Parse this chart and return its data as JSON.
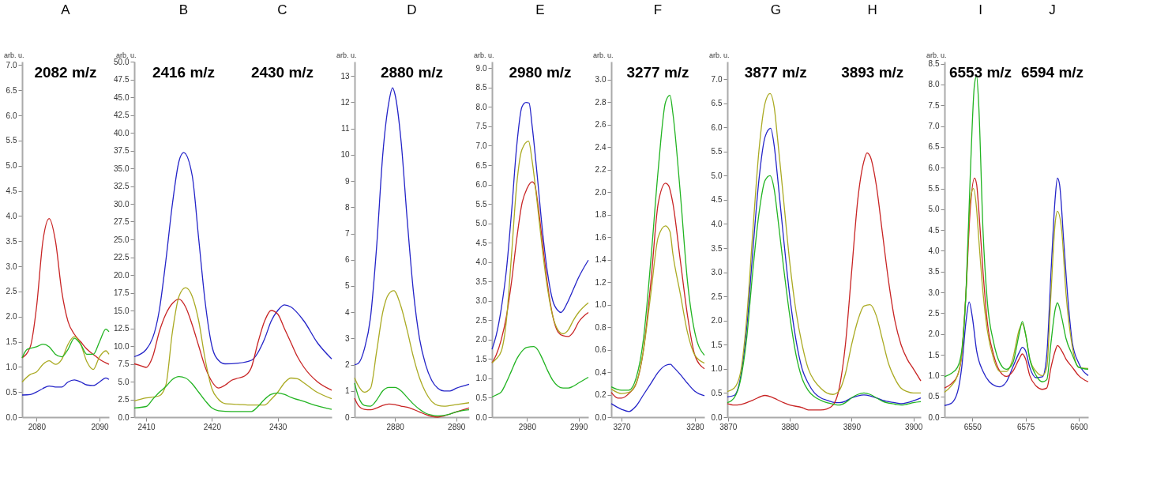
{
  "chart_data": [
    {
      "type": "line",
      "ylabel": "arb. u.",
      "xlim": [
        2077.7,
        2091.5
      ],
      "xticks": [
        2080,
        2090
      ],
      "ylim": [
        0,
        7.07
      ],
      "yticks": [
        {
          "value": 0,
          "label": "0.0"
        },
        0.5,
        {
          "value": 1,
          "label": "1.0"
        },
        1.5,
        {
          "value": 2,
          "label": "2.0"
        },
        2.5,
        {
          "value": 3,
          "label": "3.0"
        },
        3.5,
        {
          "value": 4,
          "label": "4.0"
        },
        4.5,
        {
          "value": 5,
          "label": "5.0"
        },
        5.5,
        {
          "value": 6,
          "label": "6.0"
        },
        6.5,
        {
          "value": 7,
          "label": "7.0"
        }
      ],
      "grid": false,
      "legend": false,
      "annotations": [
        "A",
        "2082 m/z"
      ],
      "series": [
        {
          "color": "#2424c8",
          "x": [
            2077.7,
            2079,
            2080,
            2081,
            2082,
            2083,
            2084,
            2085,
            2086,
            2087,
            2088,
            2089,
            2090,
            2091,
            2091.5
          ],
          "values": [
            0.44,
            0.45,
            0.5,
            0.57,
            0.62,
            0.6,
            0.6,
            0.7,
            0.74,
            0.7,
            0.64,
            0.63,
            0.7,
            0.78,
            0.75
          ]
        },
        {
          "color": "#c82424",
          "x": [
            2077.7,
            2079,
            2080,
            2081,
            2082,
            2083,
            2084,
            2085,
            2086,
            2087,
            2088,
            2089,
            2090,
            2091.5
          ],
          "values": [
            1.18,
            1.4,
            2.2,
            3.5,
            3.95,
            3.5,
            2.5,
            1.9,
            1.65,
            1.5,
            1.35,
            1.25,
            1.15,
            1.05
          ]
        },
        {
          "color": "#aaaa22",
          "x": [
            2077.7,
            2079,
            2080,
            2081,
            2082,
            2083,
            2084,
            2085,
            2086,
            2087,
            2088,
            2089,
            2090,
            2091,
            2091.5
          ],
          "values": [
            0.7,
            0.85,
            0.9,
            1.05,
            1.12,
            1.05,
            1.15,
            1.45,
            1.6,
            1.45,
            1.1,
            0.95,
            1.2,
            1.32,
            1.25
          ]
        },
        {
          "color": "#22b422",
          "x": [
            2077.7,
            2078.5,
            2080,
            2081,
            2082,
            2083,
            2084,
            2085,
            2086,
            2087,
            2088,
            2089,
            2090,
            2091,
            2091.5
          ],
          "values": [
            1.18,
            1.35,
            1.4,
            1.45,
            1.4,
            1.25,
            1.2,
            1.35,
            1.57,
            1.45,
            1.25,
            1.25,
            1.5,
            1.75,
            1.7
          ]
        }
      ]
    },
    {
      "type": "line",
      "ylabel": "arb. u.",
      "xlim": [
        2408.2,
        2438.2
      ],
      "xticks": [
        2410,
        2420,
        2430
      ],
      "ylim": [
        0,
        50
      ],
      "yticks": [
        {
          "value": 0,
          "label": "0.0"
        },
        2.5,
        {
          "value": 5,
          "label": "5.0"
        },
        7.5,
        {
          "value": 10,
          "label": "10.0"
        },
        12.5,
        {
          "value": 15,
          "label": "15.0"
        },
        17.5,
        {
          "value": 20,
          "label": "20.0"
        },
        22.5,
        {
          "value": 25,
          "label": "25.0"
        },
        27.5,
        {
          "value": 30,
          "label": "30.0"
        },
        32.5,
        {
          "value": 35,
          "label": "35.0"
        },
        37.5,
        {
          "value": 40,
          "label": "40.0"
        },
        42.5,
        {
          "value": 45,
          "label": "45.0"
        },
        47.5,
        {
          "value": 50,
          "label": "50.0"
        }
      ],
      "grid": false,
      "legend": false,
      "annotations": [
        "B",
        "C",
        "2416 m/z",
        "2430 m/z"
      ],
      "series": [
        {
          "color": "#2424c8",
          "x": [
            2408.2,
            2410,
            2412,
            2413,
            2414,
            2415,
            2415.7,
            2417,
            2418,
            2419,
            2420,
            2421,
            2422,
            2424,
            2426,
            2428,
            2429,
            2430,
            2431,
            2432,
            2434,
            2436,
            2438.2
          ],
          "values": [
            8.5,
            9.5,
            15,
            22,
            30,
            36,
            37.2,
            34,
            25,
            16,
            10,
            8,
            7.5,
            7.6,
            8,
            11,
            13.5,
            15,
            15.8,
            15.5,
            13.5,
            10.5,
            8.2
          ]
        },
        {
          "color": "#c82424",
          "x": [
            2408.2,
            2409,
            2410,
            2411,
            2412,
            2413,
            2414,
            2415,
            2416,
            2417,
            2418,
            2419,
            2420,
            2421,
            2422,
            2423,
            2424,
            2425,
            2426,
            2427,
            2428,
            2429,
            2430,
            2431,
            2432,
            2433,
            2434,
            2436,
            2438.2
          ],
          "values": [
            7.5,
            7.3,
            7.0,
            8.5,
            12,
            14.5,
            16,
            16.6,
            15.5,
            13,
            10,
            7,
            5,
            4.1,
            4.5,
            5.2,
            5.5,
            5.8,
            7,
            10.5,
            13.5,
            15,
            14.5,
            12.5,
            10.5,
            8.5,
            7,
            5,
            3.8
          ]
        },
        {
          "color": "#aaaa22",
          "x": [
            2408.2,
            2410,
            2412,
            2413,
            2414,
            2415,
            2416,
            2417,
            2418,
            2419,
            2420,
            2421,
            2422,
            2424,
            2426,
            2428,
            2429,
            2430,
            2431,
            2432,
            2433,
            2434,
            2436,
            2438.2
          ],
          "values": [
            2.3,
            2.7,
            3.0,
            4.5,
            12,
            17,
            18.2,
            17,
            13.5,
            8,
            4,
            2.5,
            1.9,
            1.8,
            1.7,
            1.7,
            2.5,
            3.5,
            4.8,
            5.5,
            5.4,
            4.8,
            3.5,
            2.6
          ]
        },
        {
          "color": "#22b422",
          "x": [
            2408.2,
            2410,
            2411,
            2412,
            2413,
            2414,
            2415,
            2416,
            2417,
            2418,
            2419,
            2420,
            2421,
            2423,
            2426,
            2427,
            2428,
            2429,
            2430,
            2431,
            2432,
            2434,
            2436,
            2438.2
          ],
          "values": [
            1.3,
            1.5,
            2.5,
            3.5,
            4.3,
            5.3,
            5.7,
            5.5,
            4.7,
            3.5,
            2.3,
            1.3,
            0.9,
            0.8,
            0.8,
            1.5,
            2.5,
            3.2,
            3.4,
            3.2,
            2.8,
            2.2,
            1.6,
            1.1
          ]
        }
      ]
    },
    {
      "type": "line",
      "ylabel": "arb. u.",
      "xlim": [
        2873.4,
        2892.1
      ],
      "xticks": [
        2880,
        2890
      ],
      "ylim": [
        0,
        13.55
      ],
      "yticks": [
        0,
        1,
        2,
        3,
        4,
        5,
        6,
        7,
        8,
        9,
        10,
        11,
        12,
        13
      ],
      "grid": false,
      "legend": false,
      "annotations": [
        "D",
        "2880 m/z"
      ],
      "series": [
        {
          "color": "#2424c8",
          "x": [
            2873.4,
            2874,
            2875,
            2876,
            2877,
            2878,
            2879,
            2879.6,
            2880,
            2881,
            2882,
            2883,
            2884,
            2885,
            2886,
            2887,
            2888,
            2889,
            2890,
            2892.1
          ],
          "values": [
            2.0,
            2.05,
            2.6,
            3.8,
            6.5,
            10,
            12.0,
            12.55,
            12.3,
            10.5,
            7.5,
            4.8,
            3,
            2,
            1.4,
            1.1,
            1.0,
            1.0,
            1.1,
            1.25
          ]
        },
        {
          "color": "#c82424",
          "x": [
            2873.4,
            2874,
            2875,
            2876,
            2877,
            2878,
            2879,
            2880,
            2881,
            2882,
            2883,
            2884,
            2885,
            2886,
            2887,
            2888,
            2890,
            2892.1
          ],
          "values": [
            0.72,
            0.45,
            0.3,
            0.28,
            0.35,
            0.45,
            0.5,
            0.48,
            0.42,
            0.38,
            0.3,
            0.2,
            0.1,
            0.03,
            0.0,
            0.05,
            0.2,
            0.35
          ]
        },
        {
          "color": "#aaaa22",
          "x": [
            2873.4,
            2874,
            2875,
            2876,
            2877,
            2878,
            2879,
            2879.8,
            2881,
            2882,
            2883,
            2884,
            2885,
            2886,
            2887,
            2888,
            2890,
            2892.1
          ],
          "values": [
            1.5,
            1.2,
            0.95,
            1.1,
            2.5,
            4,
            4.7,
            4.82,
            4.2,
            3.3,
            2.3,
            1.5,
            0.95,
            0.6,
            0.45,
            0.42,
            0.48,
            0.55
          ]
        },
        {
          "color": "#22b422",
          "x": [
            2873.4,
            2874,
            2875,
            2876,
            2877,
            2878,
            2879,
            2880,
            2881,
            2882,
            2883,
            2884,
            2885,
            2886,
            2887,
            2889,
            2890,
            2892.1
          ],
          "values": [
            1.3,
            0.8,
            0.45,
            0.42,
            0.65,
            1.0,
            1.13,
            1.13,
            1.0,
            0.75,
            0.5,
            0.3,
            0.15,
            0.08,
            0.05,
            0.12,
            0.2,
            0.28
          ]
        }
      ]
    },
    {
      "type": "line",
      "ylabel": "arb. u.",
      "xlim": [
        2973.2,
        2991.9
      ],
      "xticks": [
        2980,
        2990
      ],
      "ylim": [
        0,
        9.17
      ],
      "yticks": [
        {
          "value": 0,
          "label": "0.0"
        },
        0.5,
        {
          "value": 1,
          "label": "1.0"
        },
        1.5,
        {
          "value": 2,
          "label": "2.0"
        },
        2.5,
        {
          "value": 3,
          "label": "3.0"
        },
        3.5,
        {
          "value": 4,
          "label": "4.0"
        },
        4.5,
        {
          "value": 5,
          "label": "5.0"
        },
        5.5,
        {
          "value": 6,
          "label": "6.0"
        },
        6.5,
        {
          "value": 7,
          "label": "7.0"
        },
        7.5,
        {
          "value": 8,
          "label": "8.0"
        },
        8.5,
        {
          "value": 9,
          "label": "9.0"
        }
      ],
      "grid": false,
      "legend": false,
      "annotations": [
        "E",
        "2980 m/z"
      ],
      "series": [
        {
          "color": "#2424c8",
          "x": [
            2973.2,
            2974,
            2975,
            2976,
            2977,
            2978,
            2979,
            2979.8,
            2980.4,
            2981,
            2982,
            2983,
            2984,
            2985,
            2986,
            2986.6,
            2987,
            2988,
            2989,
            2990,
            2991.9
          ],
          "values": [
            1.75,
            2.1,
            2.8,
            3.8,
            5.3,
            7,
            8.0,
            8.12,
            8.1,
            7.5,
            6.2,
            4.8,
            3.7,
            3.0,
            2.75,
            2.7,
            2.75,
            3.0,
            3.3,
            3.6,
            4.05
          ]
        },
        {
          "color": "#c82424",
          "x": [
            2973.2,
            2974,
            2975,
            2976,
            2977,
            2978,
            2979,
            2980,
            2981,
            2981.5,
            2982,
            2983,
            2984,
            2985,
            2986,
            2987,
            2988,
            2989,
            2990,
            2991.9
          ],
          "values": [
            1.4,
            1.6,
            2.0,
            2.6,
            3.5,
            4.6,
            5.5,
            5.9,
            6.07,
            6.0,
            5.6,
            4.5,
            3.4,
            2.6,
            2.2,
            2.1,
            2.08,
            2.2,
            2.45,
            2.7
          ]
        },
        {
          "color": "#aaaa22",
          "x": [
            2973.2,
            2974,
            2975,
            2976,
            2977,
            2978,
            2979,
            2980.3,
            2981,
            2982,
            2983,
            2984,
            2985,
            2986,
            2987,
            2988,
            2989,
            2990,
            2991.9
          ],
          "values": [
            1.4,
            1.5,
            1.7,
            2.5,
            4.2,
            6,
            6.9,
            7.12,
            6.6,
            5.5,
            4.3,
            3.3,
            2.6,
            2.25,
            2.15,
            2.25,
            2.5,
            2.7,
            2.95
          ]
        },
        {
          "color": "#22b422",
          "x": [
            2973.2,
            2974,
            2975,
            2976,
            2977,
            2978,
            2979,
            2980,
            2981.3,
            2982,
            2983,
            2984,
            2985,
            2986,
            2987,
            2988,
            2989,
            2990,
            2991.9
          ],
          "values": [
            0.52,
            0.57,
            0.65,
            0.9,
            1.2,
            1.5,
            1.7,
            1.8,
            1.82,
            1.75,
            1.5,
            1.2,
            0.95,
            0.8,
            0.75,
            0.75,
            0.8,
            0.88,
            1.03
          ]
        }
      ]
    },
    {
      "type": "line",
      "ylabel": "arb. u.",
      "xlim": [
        3268.6,
        3281.3
      ],
      "xticks": [
        3270,
        3280
      ],
      "ylim": [
        0,
        3.16
      ],
      "yticks": [
        {
          "value": 0,
          "label": "0.0"
        },
        0.2,
        0.4,
        0.6,
        0.8,
        {
          "value": 1,
          "label": "1.0"
        },
        1.2,
        1.4,
        1.6,
        1.8,
        {
          "value": 2,
          "label": "2.0"
        },
        2.2,
        2.4,
        2.6,
        2.8,
        {
          "value": 3,
          "label": "3.0"
        }
      ],
      "grid": false,
      "legend": false,
      "annotations": [
        "F",
        "3277 m/z"
      ],
      "series": [
        {
          "color": "#2424c8",
          "x": [
            3268.6,
            3270,
            3271,
            3272,
            3273,
            3274,
            3275,
            3276,
            3276.7,
            3277,
            3278,
            3279,
            3280,
            3281.3
          ],
          "values": [
            0.12,
            0.07,
            0.05,
            0.1,
            0.2,
            0.3,
            0.4,
            0.46,
            0.47,
            0.45,
            0.38,
            0.3,
            0.23,
            0.19
          ]
        },
        {
          "color": "#c82424",
          "x": [
            3268.6,
            3269.5,
            3270,
            3271,
            3272,
            3273,
            3274,
            3275,
            3276,
            3276.4,
            3277,
            3278,
            3279,
            3280,
            3281.3
          ],
          "values": [
            0.22,
            0.17,
            0.17,
            0.21,
            0.3,
            0.6,
            1.2,
            1.9,
            2.08,
            2.06,
            1.9,
            1.4,
            0.9,
            0.55,
            0.43
          ]
        },
        {
          "color": "#aaaa22",
          "x": [
            3268.6,
            3270,
            3271,
            3272,
            3273,
            3274,
            3275,
            3276,
            3276.6,
            3277,
            3278,
            3279,
            3280,
            3281.3
          ],
          "values": [
            0.25,
            0.21,
            0.22,
            0.3,
            0.6,
            1.1,
            1.6,
            1.7,
            1.65,
            1.45,
            1.1,
            0.75,
            0.55,
            0.48
          ]
        },
        {
          "color": "#22b422",
          "x": [
            3268.6,
            3270,
            3271,
            3272,
            3273,
            3274,
            3275,
            3276,
            3276.6,
            3277,
            3278,
            3279,
            3280,
            3281.3
          ],
          "values": [
            0.27,
            0.24,
            0.24,
            0.35,
            0.7,
            1.4,
            2.2,
            2.8,
            2.86,
            2.7,
            2.0,
            1.2,
            0.75,
            0.55
          ]
        }
      ]
    },
    {
      "type": "line",
      "ylabel": "arb. u.",
      "xlim": [
        3869.9,
        3901.2
      ],
      "xticks": [
        3870,
        3880,
        3890,
        3900
      ],
      "ylim": [
        0,
        7.36
      ],
      "yticks": [
        {
          "value": 0,
          "label": "0.0"
        },
        0.5,
        {
          "value": 1,
          "label": "1.0"
        },
        1.5,
        {
          "value": 2,
          "label": "2.0"
        },
        2.5,
        {
          "value": 3,
          "label": "3.0"
        },
        3.5,
        {
          "value": 4,
          "label": "4.0"
        },
        4.5,
        {
          "value": 5,
          "label": "5.0"
        },
        5.5,
        {
          "value": 6,
          "label": "6.0"
        },
        6.5,
        {
          "value": 7,
          "label": "7.0"
        }
      ],
      "grid": false,
      "legend": false,
      "annotations": [
        "G",
        "H",
        "3877 m/z",
        "3893 m/z"
      ],
      "series": [
        {
          "color": "#2424c8",
          "x": [
            3869.9,
            3871,
            3872,
            3873,
            3874,
            3875,
            3876,
            3876.9,
            3877.5,
            3878,
            3879,
            3880,
            3881,
            3882,
            3883,
            3884,
            3885,
            3886,
            3887,
            3888,
            3889,
            3890,
            3891,
            3892,
            3893,
            3894,
            3895,
            3897,
            3898,
            3899,
            3900,
            3901.2
          ],
          "values": [
            0.42,
            0.45,
            0.8,
            1.8,
            3.4,
            4.9,
            5.8,
            5.98,
            5.6,
            5.0,
            3.7,
            2.5,
            1.6,
            1.0,
            0.7,
            0.5,
            0.4,
            0.35,
            0.31,
            0.3,
            0.33,
            0.4,
            0.44,
            0.46,
            0.44,
            0.4,
            0.35,
            0.3,
            0.28,
            0.3,
            0.34,
            0.4
          ]
        },
        {
          "color": "#c82424",
          "x": [
            3869.9,
            3871,
            3872,
            3874,
            3876,
            3877,
            3878,
            3879,
            3880,
            3882,
            3883,
            3885,
            3886,
            3887,
            3888,
            3889,
            3890,
            3891,
            3892,
            3892.5,
            3893,
            3894,
            3895,
            3896,
            3897,
            3898,
            3899,
            3900,
            3901.2
          ],
          "values": [
            0.28,
            0.25,
            0.26,
            0.35,
            0.45,
            0.42,
            0.36,
            0.3,
            0.25,
            0.2,
            0.15,
            0.15,
            0.17,
            0.25,
            0.6,
            1.5,
            3.0,
            4.5,
            5.3,
            5.47,
            5.4,
            4.8,
            3.8,
            2.8,
            2.0,
            1.5,
            1.2,
            1.0,
            0.75
          ]
        },
        {
          "color": "#aaaa22",
          "x": [
            3869.9,
            3871,
            3872,
            3873,
            3874,
            3875,
            3876,
            3876.8,
            3877.5,
            3878,
            3879,
            3880,
            3881,
            3882,
            3883,
            3884,
            3885,
            3886,
            3887,
            3888,
            3889,
            3890,
            3891,
            3892,
            3893,
            3894,
            3895,
            3896,
            3897,
            3898,
            3899,
            3900,
            3901.2
          ],
          "values": [
            0.53,
            0.6,
            0.9,
            2,
            3.8,
            5.5,
            6.5,
            6.7,
            6.4,
            5.8,
            4.5,
            3.2,
            2.2,
            1.5,
            1.0,
            0.75,
            0.6,
            0.5,
            0.47,
            0.55,
            0.9,
            1.5,
            2.0,
            2.3,
            2.33,
            2.1,
            1.6,
            1.1,
            0.8,
            0.6,
            0.53,
            0.5,
            0.5
          ]
        },
        {
          "color": "#22b422",
          "x": [
            3869.9,
            3871,
            3872,
            3873,
            3874,
            3875,
            3876,
            3876.8,
            3877.5,
            3878,
            3879,
            3880,
            3881,
            3882,
            3883,
            3884,
            3885,
            3886,
            3887,
            3888,
            3889,
            3890,
            3891,
            3892,
            3893,
            3894,
            3895,
            3897,
            3898,
            3899,
            3900,
            3901.2
          ],
          "values": [
            0.3,
            0.4,
            0.75,
            1.6,
            3.0,
            4.2,
            4.9,
            5.0,
            4.7,
            4.2,
            3.1,
            2.1,
            1.3,
            0.8,
            0.55,
            0.42,
            0.35,
            0.3,
            0.27,
            0.25,
            0.3,
            0.4,
            0.47,
            0.5,
            0.47,
            0.4,
            0.33,
            0.27,
            0.25,
            0.27,
            0.3,
            0.32
          ]
        }
      ]
    },
    {
      "type": "line",
      "ylabel": "arb. u.",
      "xlim": [
        6536.9,
        6604.5
      ],
      "xticks": [
        6550,
        6575,
        6600
      ],
      "ylim": [
        0,
        8.55
      ],
      "yticks": [
        {
          "value": 0,
          "label": "0.0"
        },
        0.5,
        {
          "value": 1,
          "label": "1.0"
        },
        1.5,
        {
          "value": 2,
          "label": "2.0"
        },
        2.5,
        {
          "value": 3,
          "label": "3.0"
        },
        3.5,
        {
          "value": 4,
          "label": "4.0"
        },
        4.5,
        {
          "value": 5,
          "label": "5.0"
        },
        5.5,
        {
          "value": 6,
          "label": "6.0"
        },
        6.5,
        {
          "value": 7,
          "label": "7.0"
        },
        7.5,
        {
          "value": 8,
          "label": "8.0"
        },
        8.5
      ],
      "grid": false,
      "legend": false,
      "annotations": [
        "I",
        "J",
        "6553 m/z",
        "6594 m/z"
      ],
      "series": [
        {
          "color": "#2424c8",
          "x": [
            6536.9,
            6540,
            6543,
            6545,
            6547,
            6548.5,
            6550,
            6552,
            6555,
            6558,
            6561,
            6563,
            6566,
            6569,
            6572,
            6573.5,
            6575,
            6577,
            6580,
            6583,
            6585,
            6587,
            6589,
            6590,
            6591,
            6593,
            6595,
            6597,
            6600,
            6604.5
          ],
          "values": [
            0.28,
            0.33,
            0.6,
            1.2,
            2.3,
            2.77,
            2.4,
            1.6,
            1.1,
            0.85,
            0.75,
            0.73,
            0.85,
            1.2,
            1.55,
            1.68,
            1.6,
            1.2,
            0.95,
            0.97,
            1.5,
            3.5,
            5.3,
            5.75,
            5.6,
            4.2,
            2.8,
            1.8,
            1.3,
            1.0
          ]
        },
        {
          "color": "#c82424",
          "x": [
            6536.9,
            6540,
            6543,
            6545,
            6547,
            6549,
            6551,
            6552,
            6553,
            6555,
            6557,
            6560,
            6563,
            6566,
            6569,
            6572,
            6573.5,
            6575,
            6577,
            6580,
            6583,
            6585,
            6587,
            6589,
            6590,
            6592,
            6594,
            6597,
            6600,
            6604.5
          ],
          "values": [
            0.7,
            0.8,
            1.0,
            1.5,
            3,
            5,
            5.75,
            5.6,
            5.0,
            3.5,
            2.3,
            1.5,
            1.1,
            0.98,
            1.1,
            1.4,
            1.52,
            1.4,
            1.0,
            0.75,
            0.67,
            0.7,
            1.2,
            1.6,
            1.72,
            1.6,
            1.4,
            1.2,
            1.0,
            0.85
          ]
        },
        {
          "color": "#aaaa22",
          "x": [
            6536.9,
            6540,
            6543,
            6545,
            6547,
            6549,
            6550.5,
            6552,
            6553,
            6555,
            6557,
            6560,
            6563,
            6566,
            6569,
            6572,
            6573.5,
            6575,
            6577,
            6580,
            6583,
            6585,
            6587,
            6589,
            6590,
            6592,
            6594,
            6597,
            6600,
            6604.5
          ],
          "values": [
            0.6,
            0.75,
            1.0,
            1.5,
            3.0,
            5.2,
            5.5,
            5.0,
            4.3,
            3.0,
            2.1,
            1.4,
            1.1,
            1.1,
            1.4,
            2.1,
            2.25,
            2.0,
            1.4,
            1.1,
            1.0,
            1.2,
            3.0,
            4.7,
            4.95,
            4.5,
            3.0,
            1.7,
            1.2,
            1.17
          ]
        },
        {
          "color": "#22b422",
          "x": [
            6536.9,
            6540,
            6543,
            6545,
            6547,
            6549,
            6551,
            6552,
            6553,
            6555,
            6557,
            6560,
            6563,
            6566,
            6569,
            6572,
            6573.5,
            6575,
            6577,
            6580,
            6583,
            6585,
            6587,
            6589,
            6590,
            6592,
            6594,
            6597,
            6600,
            6604.5
          ],
          "values": [
            0.97,
            1.05,
            1.2,
            1.6,
            3,
            5.8,
            8.0,
            8.2,
            7.5,
            4.5,
            2.8,
            1.8,
            1.3,
            1.15,
            1.3,
            2.0,
            2.3,
            2.0,
            1.4,
            1.0,
            0.85,
            0.9,
            1.8,
            2.6,
            2.75,
            2.4,
            1.9,
            1.5,
            1.2,
            1.15
          ]
        }
      ]
    }
  ]
}
